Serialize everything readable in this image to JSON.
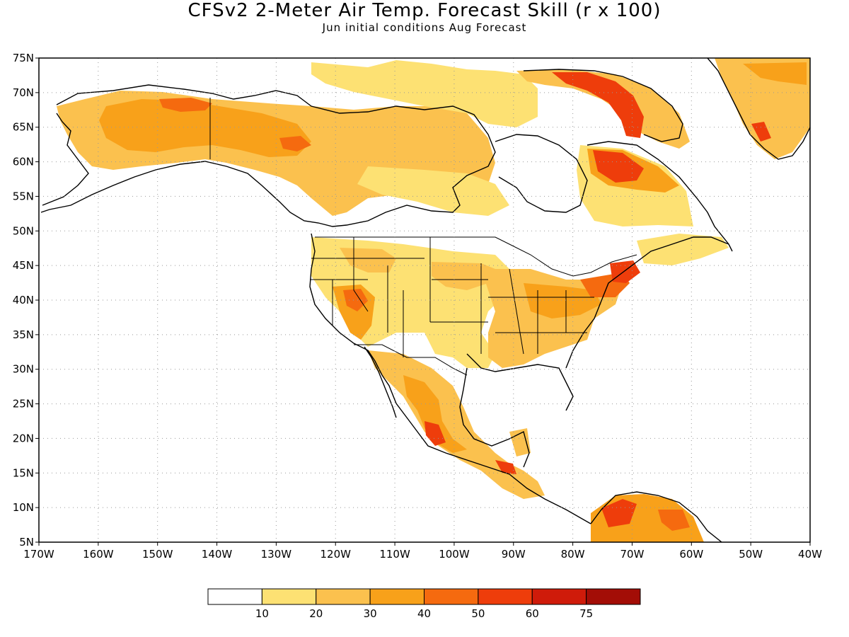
{
  "header": {
    "title": "CFSv2 2-Meter Air Temp. Forecast Skill (r x 100)",
    "subtitle": "Jun initial conditions  Aug Forecast"
  },
  "map": {
    "projection": "cylindrical equidistant",
    "region": "North America",
    "lon_range": [
      -170,
      -40
    ],
    "lat_range": [
      5,
      75
    ],
    "grid": "dotted",
    "lat_ticks": [
      {
        "value": 75,
        "label": "75N"
      },
      {
        "value": 70,
        "label": "70N"
      },
      {
        "value": 65,
        "label": "65N"
      },
      {
        "value": 60,
        "label": "60N"
      },
      {
        "value": 55,
        "label": "55N"
      },
      {
        "value": 50,
        "label": "50N"
      },
      {
        "value": 45,
        "label": "45N"
      },
      {
        "value": 40,
        "label": "40N"
      },
      {
        "value": 35,
        "label": "35N"
      },
      {
        "value": 30,
        "label": "30N"
      },
      {
        "value": 25,
        "label": "25N"
      },
      {
        "value": 20,
        "label": "20N"
      },
      {
        "value": 15,
        "label": "15N"
      },
      {
        "value": 10,
        "label": "10N"
      },
      {
        "value": 5,
        "label": "5N"
      }
    ],
    "lon_ticks": [
      {
        "value": -170,
        "label": "170W"
      },
      {
        "value": -160,
        "label": "160W"
      },
      {
        "value": -150,
        "label": "150W"
      },
      {
        "value": -140,
        "label": "140W"
      },
      {
        "value": -130,
        "label": "130W"
      },
      {
        "value": -120,
        "label": "120W"
      },
      {
        "value": -110,
        "label": "110W"
      },
      {
        "value": -100,
        "label": "100W"
      },
      {
        "value": -90,
        "label": "90W"
      },
      {
        "value": -80,
        "label": "80W"
      },
      {
        "value": -70,
        "label": "70W"
      },
      {
        "value": -60,
        "label": "60W"
      },
      {
        "value": -50,
        "label": "50W"
      },
      {
        "value": -40,
        "label": "40W"
      }
    ],
    "coastline_color": "#000000",
    "colorbar": {
      "bins": [
        {
          "color": "#ffffff",
          "label": "10"
        },
        {
          "color": "#fde173",
          "label": "20"
        },
        {
          "color": "#fbc14e",
          "label": "30"
        },
        {
          "color": "#f8a11a",
          "label": "40"
        },
        {
          "color": "#f56a0f",
          "label": "50"
        },
        {
          "color": "#ee3d0b",
          "label": "60"
        },
        {
          "color": "#cf1b0a",
          "label": "75"
        },
        {
          "color": "#a30d06",
          "label": ""
        }
      ]
    }
  }
}
